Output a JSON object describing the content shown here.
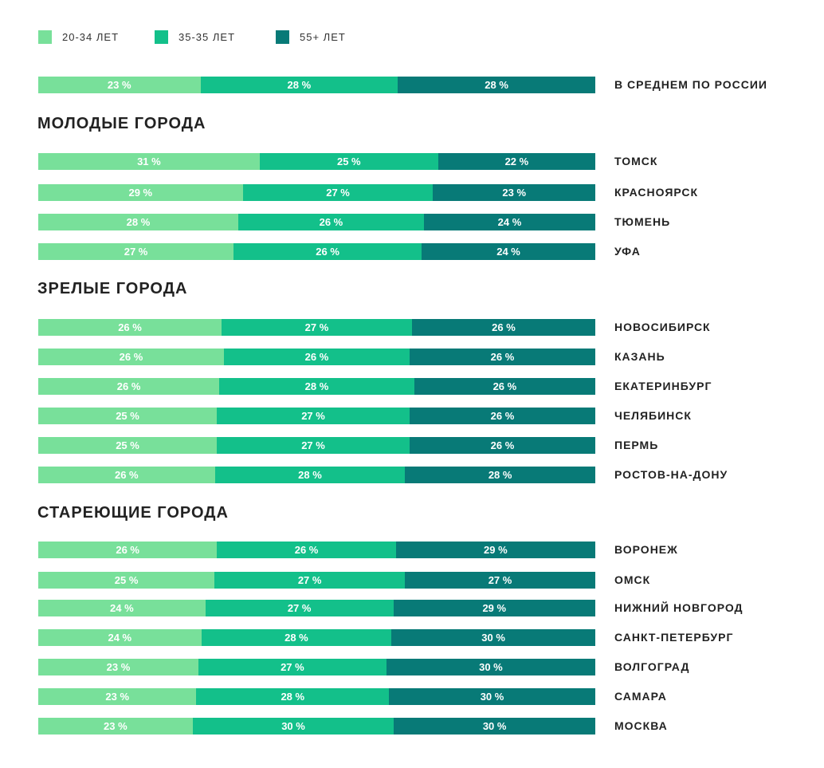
{
  "chart_data": {
    "type": "bar",
    "orientation": "horizontal",
    "stacked": true,
    "legend_position": "top-left",
    "grid": false,
    "series": [
      {
        "name": "20-34 ЛЕТ",
        "color": "#78e09a"
      },
      {
        "name": "35-35 ЛЕТ",
        "color": "#13c08a"
      },
      {
        "name": "55+ ЛЕТ",
        "color": "#087a77"
      }
    ],
    "groups": [
      {
        "title": "",
        "rows": [
          {
            "label": "В СРЕДНЕМ ПО РОССИИ",
            "values": [
              23,
              28,
              28
            ]
          }
        ]
      },
      {
        "title": "МОЛОДЫЕ ГОРОДА",
        "rows": [
          {
            "label": "ТОМСК",
            "values": [
              31,
              25,
              22
            ]
          },
          {
            "label": "КРАСНОЯРСК",
            "values": [
              29,
              27,
              23
            ]
          },
          {
            "label": "ТЮМЕНЬ",
            "values": [
              28,
              26,
              24
            ]
          },
          {
            "label": "УФА",
            "values": [
              27,
              26,
              24
            ]
          }
        ]
      },
      {
        "title": "ЗРЕЛЫЕ ГОРОДА",
        "rows": [
          {
            "label": "НОВОСИБИРСК",
            "values": [
              26,
              27,
              26
            ]
          },
          {
            "label": "КАЗАНЬ",
            "values": [
              26,
              26,
              26
            ]
          },
          {
            "label": "ЕКАТЕРИНБУРГ",
            "values": [
              26,
              28,
              26
            ]
          },
          {
            "label": "ЧЕЛЯБИНСК",
            "values": [
              25,
              27,
              26
            ]
          },
          {
            "label": "ПЕРМЬ",
            "values": [
              25,
              27,
              26
            ]
          },
          {
            "label": "РОСТОВ-НА-ДОНУ",
            "values": [
              26,
              28,
              28
            ]
          }
        ]
      },
      {
        "title": "СТАРЕЮЩИЕ ГОРОДА",
        "rows": [
          {
            "label": "ВОРОНЕЖ",
            "values": [
              26,
              26,
              29
            ]
          },
          {
            "label": "ОМСК",
            "values": [
              25,
              27,
              27
            ]
          },
          {
            "label": "НИЖНИЙ НОВГОРОД",
            "values": [
              24,
              27,
              29
            ]
          },
          {
            "label": "САНКТ-ПЕТЕРБУРГ",
            "values": [
              24,
              28,
              30
            ]
          },
          {
            "label": "ВОЛГОГРАД",
            "values": [
              23,
              27,
              30
            ]
          },
          {
            "label": "САМАРА",
            "values": [
              23,
              28,
              30
            ]
          },
          {
            "label": "МОСКВА",
            "values": [
              23,
              30,
              30
            ]
          }
        ]
      }
    ],
    "value_suffix": " %"
  }
}
